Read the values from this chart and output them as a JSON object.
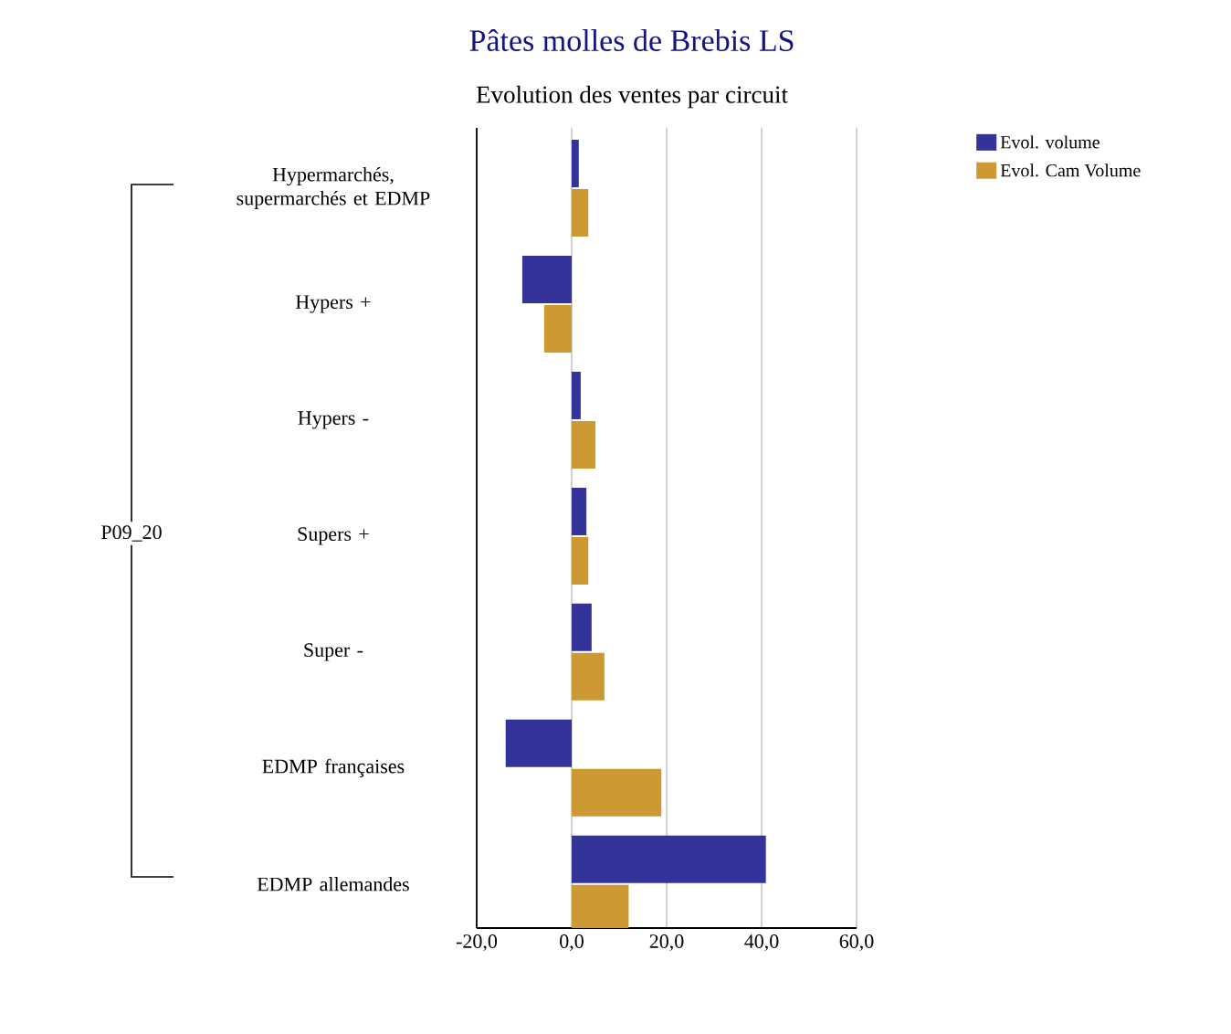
{
  "chart_data": {
    "type": "bar",
    "orientation": "horizontal",
    "title": "Pâtes molles de Brebis LS",
    "subtitle": "Evolution des ventes par circuit",
    "categories": [
      "Hypermarchés, supermarchés et EDMP",
      "Hypers +",
      "Hypers -",
      "Supers +",
      "Super -",
      "EDMP françaises",
      "EDMP allemandes"
    ],
    "series": [
      {
        "name": "Evol. volume",
        "color": "#333399",
        "values": [
          1.5,
          -10.4,
          1.9,
          3.1,
          4.2,
          -13.9,
          40.9
        ]
      },
      {
        "name": "Evol. Cam Volume",
        "color": "#cc9933",
        "values": [
          3.5,
          -5.8,
          5.0,
          3.5,
          6.9,
          18.9,
          12.0
        ]
      }
    ],
    "xlim": [
      -20,
      60
    ],
    "xticks": [
      {
        "value": -20,
        "label": "-20,0"
      },
      {
        "value": 0,
        "label": "0,0"
      },
      {
        "value": 20,
        "label": "20,0"
      },
      {
        "value": 40,
        "label": "40,0"
      },
      {
        "value": 60,
        "label": "60,0"
      }
    ],
    "grid": "x",
    "legend": "top right",
    "annotations": [
      "P09_20"
    ]
  }
}
